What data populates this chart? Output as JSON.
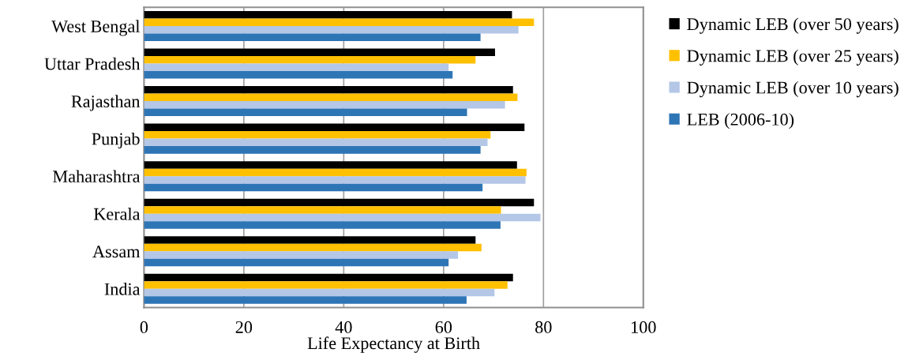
{
  "chart_data": {
    "type": "bar",
    "orientation": "horizontal",
    "xlabel": "Life Expectancy at Birth",
    "categories": [
      "West Bengal",
      "Uttar Pradesh",
      "Rajasthan",
      "Punjab",
      "Maharashtra",
      "Kerala",
      "Assam",
      "India"
    ],
    "series": [
      {
        "name": "Dynamic LEB (over 50 years)",
        "color": "#000000",
        "values": [
          73.7,
          70.3,
          73.9,
          76.2,
          74.7,
          78.1,
          66.4,
          73.9
        ]
      },
      {
        "name": "Dynamic LEB (over 25 years)",
        "color": "#ffc000",
        "values": [
          78.1,
          66.4,
          74.8,
          69.4,
          76.6,
          71.5,
          67.6,
          72.8
        ]
      },
      {
        "name": "Dynamic LEB (over 10 years)",
        "color": "#b4c7e7",
        "values": [
          75.0,
          61.0,
          72.3,
          68.8,
          76.4,
          79.4,
          62.9,
          70.2
        ]
      },
      {
        "name": "LEB (2006-10)",
        "color": "#2e75b6",
        "values": [
          67.4,
          61.8,
          64.7,
          67.4,
          67.8,
          71.4,
          61.0,
          64.6
        ]
      }
    ],
    "xlim": [
      0,
      100
    ],
    "xticks": [
      0,
      20,
      40,
      60,
      80,
      100
    ],
    "grid": "x",
    "legend": "right"
  }
}
